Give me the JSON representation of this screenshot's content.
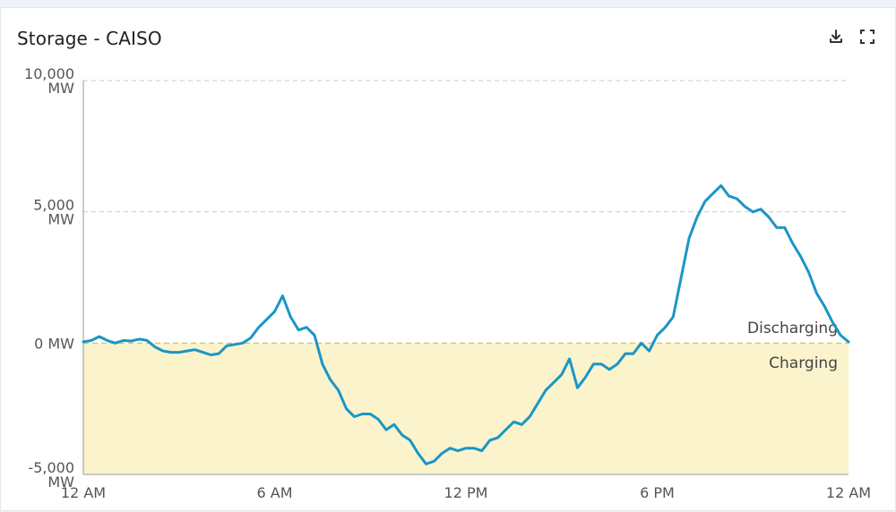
{
  "title": "Storage - CAISO",
  "icons": {
    "download": "download-icon",
    "fullscreen": "fullscreen-icon"
  },
  "colors": {
    "line": "#1a96c6",
    "charging_fill": "#faf3cc",
    "zero_line": "#d8c96a",
    "grid": "#cccccc"
  },
  "chart_data": {
    "type": "line",
    "title": "Storage - CAISO",
    "xlabel": "",
    "ylabel": "",
    "ylim": [
      -5000,
      10000
    ],
    "xlim": [
      0,
      24
    ],
    "grid": true,
    "y_ticks": [
      {
        "value": 10000,
        "label": [
          "10,000",
          "MW"
        ]
      },
      {
        "value": 5000,
        "label": [
          "5,000",
          "MW"
        ]
      },
      {
        "value": 0,
        "label": [
          "0 MW"
        ]
      },
      {
        "value": -5000,
        "label": [
          "-5,000",
          "MW"
        ]
      }
    ],
    "x_ticks": [
      {
        "value": 0,
        "label": "12 AM"
      },
      {
        "value": 6,
        "label": "6 AM"
      },
      {
        "value": 12,
        "label": "12 PM"
      },
      {
        "value": 18,
        "label": "6 PM"
      },
      {
        "value": 24,
        "label": "12 AM"
      }
    ],
    "annotations": {
      "positive": "Discharging",
      "negative": "Charging"
    },
    "series": [
      {
        "x": [
          0,
          0.25,
          0.5,
          0.75,
          1.0,
          1.25,
          1.5,
          1.75,
          2.0,
          2.25,
          2.5,
          2.75,
          3.0,
          3.25,
          3.5,
          3.75,
          4.0,
          4.25,
          4.5,
          4.75,
          5.0,
          5.25,
          5.5,
          5.75,
          6.0,
          6.25,
          6.5,
          6.75,
          7.0,
          7.25,
          7.5,
          7.75,
          8.0,
          8.25,
          8.5,
          8.75,
          9.0,
          9.25,
          9.5,
          9.75,
          10.0,
          10.25,
          10.5,
          10.75,
          11.0,
          11.25,
          11.5,
          11.75,
          12.0,
          12.25,
          12.5,
          12.75,
          13.0,
          13.25,
          13.5,
          13.75,
          14.0,
          14.25,
          14.5,
          14.75,
          15.0,
          15.25,
          15.5,
          15.75,
          16.0,
          16.25,
          16.5,
          16.75,
          17.0,
          17.25,
          17.5,
          17.75,
          18.0,
          18.25,
          18.5,
          18.75,
          19.0,
          19.25,
          19.5,
          19.75,
          20.0,
          20.25,
          20.5,
          20.75,
          21.0,
          21.25,
          21.5,
          21.75,
          22.0,
          22.25,
          22.5,
          22.75,
          23.0,
          23.25,
          23.5,
          23.75,
          24.0
        ],
        "values": [
          50,
          100,
          250,
          100,
          0,
          100,
          80,
          150,
          100,
          -150,
          -300,
          -350,
          -350,
          -300,
          -250,
          -350,
          -450,
          -400,
          -100,
          -50,
          0,
          200,
          600,
          900,
          1200,
          1800,
          1000,
          500,
          600,
          300,
          -800,
          -1400,
          -1800,
          -2500,
          -2800,
          -2700,
          -2700,
          -2900,
          -3300,
          -3100,
          -3500,
          -3700,
          -4200,
          -4600,
          -4500,
          -4200,
          -4000,
          -4100,
          -4000,
          -4000,
          -4100,
          -3700,
          -3600,
          -3300,
          -3000,
          -3100,
          -2800,
          -2300,
          -1800,
          -1500,
          -1200,
          -600,
          -1700,
          -1300,
          -800,
          -800,
          -1000,
          -800,
          -400,
          -400,
          0,
          -300,
          300,
          600,
          1000,
          2500,
          4000,
          4800,
          5400,
          5700,
          6000,
          5600,
          5500,
          5200,
          5000,
          5100,
          4800,
          4400,
          4400,
          3800,
          3300,
          2700,
          1900,
          1400,
          800,
          300,
          50
        ]
      }
    ]
  }
}
